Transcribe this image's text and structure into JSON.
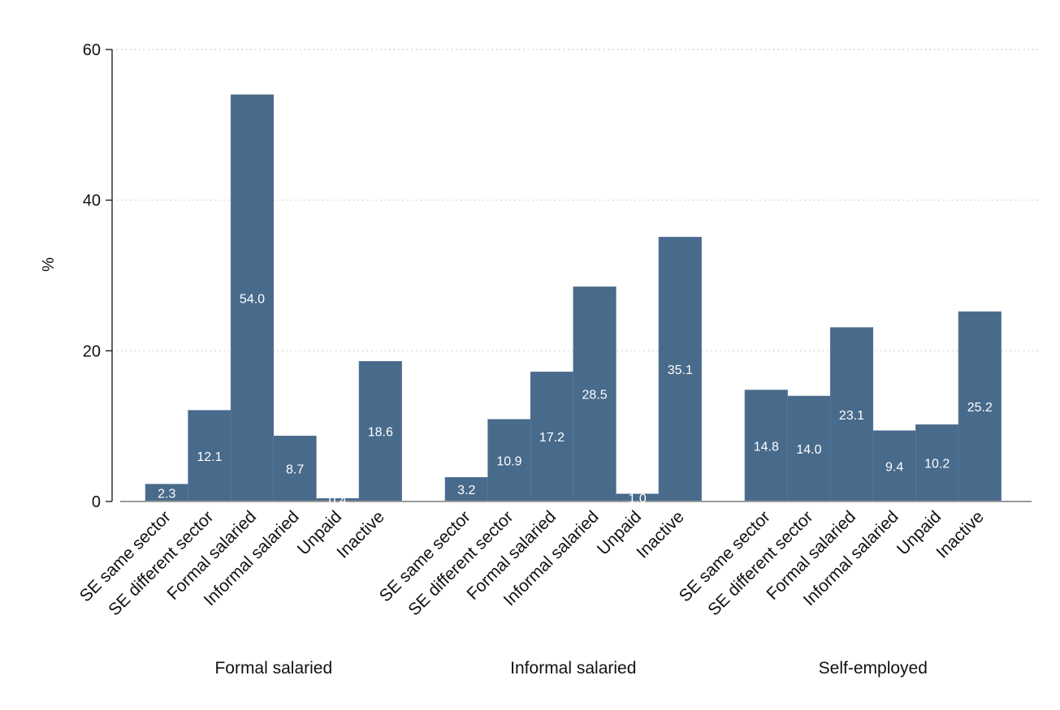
{
  "chart_data": {
    "type": "bar",
    "title": "",
    "ylabel": "%",
    "ylim": [
      0,
      60
    ],
    "yticks": [
      0,
      20,
      40,
      60
    ],
    "grid": true,
    "bar_color": "#486A8B",
    "groups": [
      {
        "name": "Formal salaried",
        "categories": [
          "SE same sector",
          "SE different sector",
          "Formal salaried",
          "Informal salaried",
          "Unpaid",
          "Inactive"
        ],
        "values": [
          2.3,
          12.1,
          54.0,
          8.7,
          0.4,
          18.6
        ],
        "labels": [
          "2.3",
          "12.1",
          "54.0",
          "8.7",
          "0.4",
          "18.6"
        ]
      },
      {
        "name": "Informal salaried",
        "categories": [
          "SE same sector",
          "SE different sector",
          "Formal salaried",
          "Informal salaried",
          "Unpaid",
          "Inactive"
        ],
        "values": [
          3.2,
          10.9,
          17.2,
          28.5,
          1.0,
          35.1
        ],
        "labels": [
          "3.2",
          "10.9",
          "17.2",
          "28.5",
          "1.0",
          "35.1"
        ]
      },
      {
        "name": "Self-employed",
        "categories": [
          "SE same sector",
          "SE different sector",
          "Formal salaried",
          "Informal salaried",
          "Unpaid",
          "Inactive"
        ],
        "values": [
          14.8,
          14.0,
          23.1,
          9.4,
          10.2,
          25.2
        ],
        "labels": [
          "14.8",
          "14.0",
          "23.1",
          "9.4",
          "10.2",
          "25.2"
        ]
      }
    ]
  }
}
